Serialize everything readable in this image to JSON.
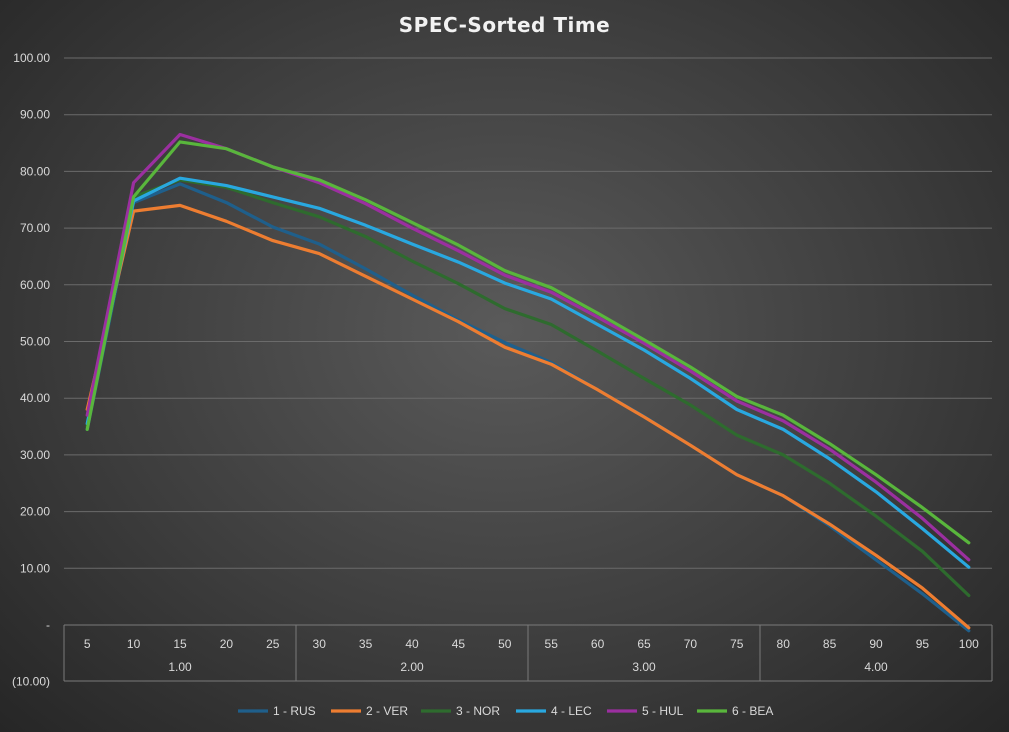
{
  "chart_data": {
    "type": "line",
    "title": "SPEC-Sorted Time",
    "xlabel": "",
    "ylabel": "",
    "ylim": [
      -10,
      100
    ],
    "y_ticks": [
      "(10.00)",
      "-",
      "10.00",
      "20.00",
      "30.00",
      "40.00",
      "50.00",
      "60.00",
      "70.00",
      "80.00",
      "90.00",
      "100.00"
    ],
    "y_tick_values": [
      -10,
      0,
      10,
      20,
      30,
      40,
      50,
      60,
      70,
      80,
      90,
      100
    ],
    "categories": [
      "5",
      "10",
      "15",
      "20",
      "25",
      "30",
      "35",
      "40",
      "45",
      "50",
      "55",
      "60",
      "65",
      "70",
      "75",
      "80",
      "85",
      "90",
      "95",
      "100"
    ],
    "groups": [
      {
        "label": "1.00",
        "start": 0,
        "end": 4
      },
      {
        "label": "2.00",
        "start": 5,
        "end": 9
      },
      {
        "label": "3.00",
        "start": 10,
        "end": 14
      },
      {
        "label": "4.00",
        "start": 15,
        "end": 19
      }
    ],
    "grid": true,
    "legend_position": "bottom",
    "series": [
      {
        "name": "1 - RUS",
        "color": "#1f5f8b",
        "values": [
          34.5,
          74.5,
          77.8,
          74.5,
          70.2,
          67.2,
          62.8,
          58.2,
          53.8,
          49.8,
          46.3,
          41.5,
          36.8,
          31.7,
          26.5,
          22.8,
          17.5,
          11.5,
          5.5,
          -1.0
        ]
      },
      {
        "name": "2 - VER",
        "color": "#ed7d31",
        "values": [
          38.0,
          73.0,
          74.0,
          71.2,
          67.8,
          65.5,
          61.5,
          57.5,
          53.5,
          49.0,
          46.0,
          41.5,
          36.7,
          31.7,
          26.5,
          22.8,
          17.8,
          12.3,
          6.5,
          -0.5
        ]
      },
      {
        "name": "3 - NOR",
        "color": "#2e6b2e",
        "values": [
          35.0,
          75.5,
          78.5,
          77.2,
          74.5,
          72.0,
          68.5,
          64.2,
          60.2,
          55.8,
          53.0,
          48.3,
          43.5,
          38.8,
          33.5,
          30.0,
          25.0,
          19.2,
          13.0,
          5.2
        ]
      },
      {
        "name": "4 - LEC",
        "color": "#29a8e0",
        "values": [
          35.5,
          74.8,
          78.8,
          77.5,
          75.5,
          73.5,
          70.5,
          67.2,
          64.0,
          60.3,
          57.5,
          53.0,
          48.5,
          43.5,
          38.0,
          34.5,
          29.3,
          23.5,
          17.0,
          10.2
        ]
      },
      {
        "name": "5 - HUL",
        "color": "#9b2fa0",
        "values": [
          37.0,
          78.0,
          86.5,
          84.0,
          80.8,
          78.0,
          74.3,
          70.0,
          66.0,
          61.7,
          58.7,
          54.3,
          49.7,
          44.8,
          39.5,
          36.0,
          31.0,
          25.2,
          18.8,
          11.5
        ]
      },
      {
        "name": "6 - BEA",
        "color": "#59b63c",
        "values": [
          34.5,
          75.5,
          85.2,
          84.0,
          80.8,
          78.5,
          75.0,
          71.0,
          67.0,
          62.5,
          59.5,
          55.0,
          50.3,
          45.5,
          40.3,
          37.0,
          32.0,
          26.5,
          20.7,
          14.5
        ]
      }
    ]
  }
}
